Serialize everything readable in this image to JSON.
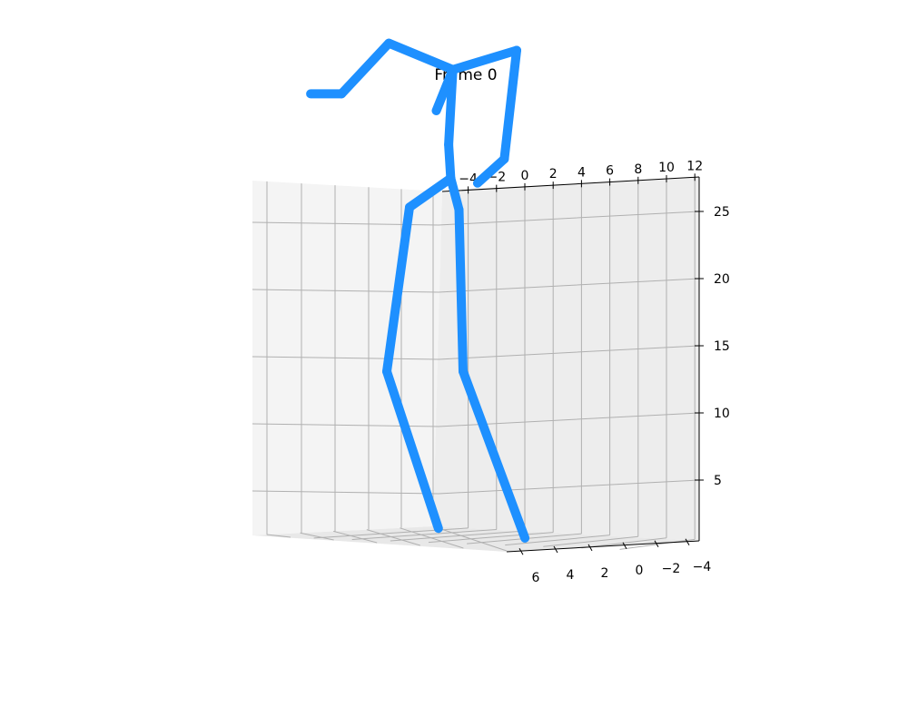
{
  "title": "Frame 0",
  "chart_data": {
    "type": "3d-line",
    "title": "Frame 0",
    "axes": {
      "x": {
        "ticks": [
          -4,
          -2,
          0,
          2,
          4,
          6,
          8,
          10,
          12
        ],
        "tick_labels": [
          "−4",
          "−2",
          "0",
          "2",
          "4",
          "6",
          "8",
          "10",
          "12"
        ]
      },
      "y": {
        "ticks": [
          6,
          4,
          2,
          0,
          -2,
          -4
        ],
        "tick_labels": [
          "6",
          "4",
          "2",
          "0",
          "−2",
          "−4"
        ]
      },
      "z": {
        "ticks": [
          25,
          20,
          15,
          10,
          5
        ],
        "tick_labels": [
          "25",
          "20",
          "15",
          "10",
          "5"
        ]
      }
    },
    "grid": true,
    "series": [
      {
        "color": "#1E90FF",
        "segments": [
          [
            [
              -2.4,
              20.6
            ],
            [
              -1.6,
              22.3
            ]
          ],
          [
            [
              -1.6,
              22.3
            ],
            [
              -4.7,
              23.4
            ]
          ],
          [
            [
              -4.7,
              23.4
            ],
            [
              -7.0,
              21.3
            ]
          ],
          [
            [
              -7.0,
              21.3
            ],
            [
              -8.5,
              21.3
            ]
          ],
          [
            [
              -1.6,
              22.3
            ],
            [
              1.5,
              23.1
            ]
          ],
          [
            [
              1.5,
              23.1
            ],
            [
              0.9,
              18.6
            ]
          ],
          [
            [
              0.9,
              18.6
            ],
            [
              -0.4,
              17.6
            ]
          ],
          [
            [
              -1.6,
              22.3
            ],
            [
              -1.8,
              19.2
            ]
          ],
          [
            [
              -1.8,
              19.2
            ],
            [
              -1.7,
              17.8
            ]
          ],
          [
            [
              -1.7,
              17.8
            ],
            [
              -3.7,
              16.6
            ]
          ],
          [
            [
              -3.7,
              16.6
            ],
            [
              -4.8,
              9.8
            ]
          ],
          [
            [
              -4.8,
              9.8
            ],
            [
              -2.3,
              3.3
            ]
          ],
          [
            [
              -1.7,
              17.8
            ],
            [
              -1.3,
              16.5
            ]
          ],
          [
            [
              -1.3,
              16.5
            ],
            [
              -1.1,
              9.8
            ]
          ],
          [
            [
              -1.1,
              9.8
            ],
            [
              1.9,
              2.9
            ]
          ]
        ]
      }
    ]
  }
}
